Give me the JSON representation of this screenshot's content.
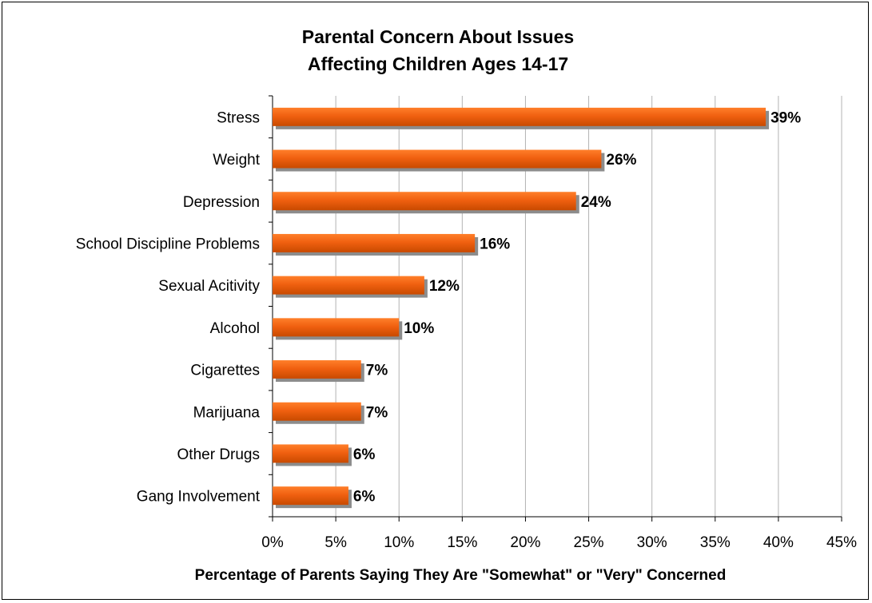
{
  "chart_data": {
    "type": "bar",
    "orientation": "horizontal",
    "title": "Parental Concern About Issues Affecting Children Ages 14-17",
    "title_lines": [
      "Parental Concern About Issues",
      "Affecting Children Ages 14-17"
    ],
    "xlabel": "Percentage of Parents Saying They Are \"Somewhat\" or \"Very\" Concerned",
    "ylabel": "",
    "categories": [
      "Stress",
      "Weight",
      "Depression",
      "School Discipline Problems",
      "Sexual Acitivity",
      "Alcohol",
      "Cigarettes",
      "Marijuana",
      "Other Drugs",
      "Gang Involvement"
    ],
    "values": [
      39,
      26,
      24,
      16,
      12,
      10,
      7,
      7,
      6,
      6
    ],
    "data_labels": [
      "39%",
      "26%",
      "24%",
      "16%",
      "12%",
      "10%",
      "7%",
      "7%",
      "6%",
      "6%"
    ],
    "xlim": [
      0,
      45
    ],
    "x_ticks": [
      0,
      5,
      10,
      15,
      20,
      25,
      30,
      35,
      40,
      45
    ],
    "x_tick_labels": [
      "0%",
      "5%",
      "10%",
      "15%",
      "20%",
      "25%",
      "30%",
      "35%",
      "40%",
      "45%"
    ],
    "grid": true,
    "legend": "none",
    "colors": {
      "bar_top": "#ff7f2a",
      "bar_bottom": "#c84a00",
      "bar_shadow": "#8c8c8c",
      "gridline": "#b3b3b3"
    }
  }
}
